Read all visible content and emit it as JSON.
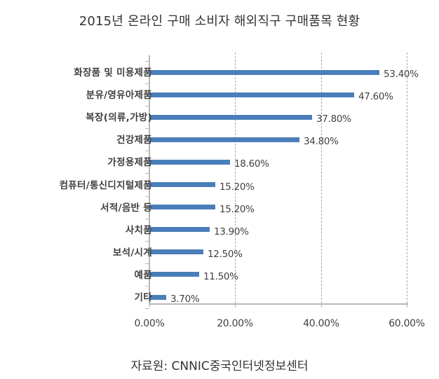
{
  "title": "2015년 온라인 구매 소비자 해외직구 구매품목 현황",
  "source": "자료원: CNNIC중국인터넷정보센터",
  "colors": {
    "bar": "#4a7ebb",
    "axis": "#b8b8b8",
    "grid": "#a9a9a9",
    "text": "#404040"
  },
  "x_axis": {
    "ticks": [
      0,
      20,
      40,
      60
    ],
    "labels": [
      "0.00%",
      "20.00%",
      "40.00%",
      "60.00%"
    ]
  },
  "bars": [
    {
      "label": "화장품 및 미용제품",
      "value": 53.4,
      "value_label": "53.40%"
    },
    {
      "label": "분유/영유아제품",
      "value": 47.6,
      "value_label": "47.60%"
    },
    {
      "label": "복장(의류,가방)",
      "value": 37.8,
      "value_label": "37.80%"
    },
    {
      "label": "건강제품",
      "value": 34.8,
      "value_label": "34.80%"
    },
    {
      "label": "가정용제품",
      "value": 18.6,
      "value_label": "18.60%"
    },
    {
      "label": "컴퓨터/통신디지털제품",
      "value": 15.2,
      "value_label": "15.20%"
    },
    {
      "label": "서적/음반 등",
      "value": 15.2,
      "value_label": "15.20%"
    },
    {
      "label": "사치품",
      "value": 13.9,
      "value_label": "13.90%"
    },
    {
      "label": "보석/시계",
      "value": 12.5,
      "value_label": "12.50%"
    },
    {
      "label": "예품",
      "value": 11.5,
      "value_label": "11.50%"
    },
    {
      "label": "기타",
      "value": 3.7,
      "value_label": "3.70%"
    }
  ],
  "chart_data": {
    "type": "bar",
    "orientation": "horizontal",
    "title": "2015년 온라인 구매 소비자 해외직구 구매품목 현황",
    "categories": [
      "화장품 및 미용제품",
      "분유/영유아제품",
      "복장(의류,가방)",
      "건강제품",
      "가정용제품",
      "컴퓨터/통신디지털제품",
      "서적/음반 등",
      "사치품",
      "보석/시계",
      "예품",
      "기타"
    ],
    "values": [
      53.4,
      47.6,
      37.8,
      34.8,
      18.6,
      15.2,
      15.2,
      13.9,
      12.5,
      11.5,
      3.7
    ],
    "data_labels": [
      "53.40%",
      "47.60%",
      "37.80%",
      "34.80%",
      "18.60%",
      "15.20%",
      "15.20%",
      "13.90%",
      "12.50%",
      "11.50%",
      "3.70%"
    ],
    "xlabel": "",
    "ylabel": "",
    "xlim": [
      0,
      60
    ],
    "x_tick_labels": [
      "0.00%",
      "20.00%",
      "40.00%",
      "60.00%"
    ],
    "grid": "vertical dashed",
    "legend": "none",
    "annotation": "자료원: CNNIC중국인터넷정보센터"
  }
}
